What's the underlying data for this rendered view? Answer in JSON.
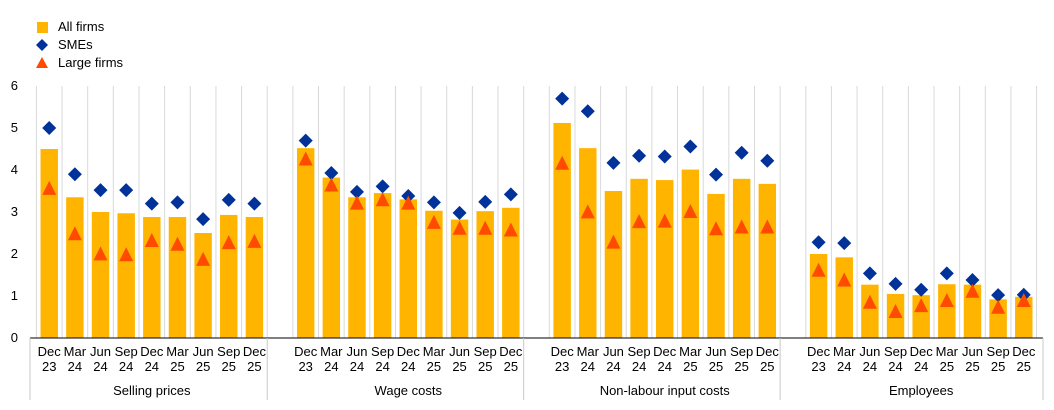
{
  "chart_data": {
    "type": "bar",
    "legend": [
      {
        "name": "All firms",
        "marker": "square",
        "color": "#FFB400"
      },
      {
        "name": "SMEs",
        "marker": "diamond",
        "color": "#003299"
      },
      {
        "name": "Large firms",
        "marker": "triangle",
        "color": "#FF4B00"
      }
    ],
    "ylim": [
      0,
      6
    ],
    "yticks": [
      "0",
      "1",
      "2",
      "3",
      "4",
      "5",
      "6"
    ],
    "categories": [
      {
        "month": "Dec",
        "year": "23"
      },
      {
        "month": "Mar",
        "year": "24"
      },
      {
        "month": "Jun",
        "year": "24"
      },
      {
        "month": "Sep",
        "year": "24"
      },
      {
        "month": "Dec",
        "year": "24"
      },
      {
        "month": "Mar",
        "year": "25"
      },
      {
        "month": "Jun",
        "year": "25"
      },
      {
        "month": "Sep",
        "year": "25"
      },
      {
        "month": "Dec",
        "year": "25"
      }
    ],
    "groups": [
      {
        "label": "Selling prices",
        "all_firms": [
          4.5,
          3.35,
          3.0,
          2.97,
          2.88,
          2.88,
          2.5,
          2.93,
          2.88
        ],
        "smes": [
          5.0,
          3.9,
          3.52,
          3.52,
          3.2,
          3.23,
          2.83,
          3.29,
          3.2
        ],
        "large_firms": [
          3.55,
          2.47,
          1.99,
          1.97,
          2.31,
          2.22,
          1.86,
          2.26,
          2.29
        ]
      },
      {
        "label": "Wage costs",
        "all_firms": [
          4.52,
          3.82,
          3.35,
          3.45,
          3.3,
          3.03,
          2.82,
          3.02,
          3.1
        ],
        "smes": [
          4.7,
          3.93,
          3.48,
          3.61,
          3.38,
          3.23,
          2.98,
          3.24,
          3.42
        ],
        "large_firms": [
          4.25,
          3.63,
          3.2,
          3.28,
          3.2,
          2.74,
          2.6,
          2.6,
          2.56
        ]
      },
      {
        "label": "Non-labour input costs",
        "all_firms": [
          5.12,
          4.52,
          3.5,
          3.79,
          3.76,
          4.01,
          3.43,
          3.79,
          3.67
        ],
        "smes": [
          5.7,
          5.4,
          4.17,
          4.34,
          4.32,
          4.56,
          3.89,
          4.41,
          4.22
        ],
        "large_firms": [
          4.15,
          2.99,
          2.27,
          2.76,
          2.77,
          3.0,
          2.59,
          2.63,
          2.63
        ]
      },
      {
        "label": "Employees",
        "all_firms": [
          2.0,
          1.92,
          1.27,
          1.05,
          1.02,
          1.28,
          1.27,
          0.92,
          0.98
        ],
        "smes": [
          2.28,
          2.26,
          1.54,
          1.29,
          1.15,
          1.54,
          1.38,
          1.02,
          1.03
        ],
        "large_firms": [
          1.6,
          1.37,
          0.84,
          0.62,
          0.76,
          0.88,
          1.1,
          0.72,
          0.88
        ]
      }
    ]
  }
}
